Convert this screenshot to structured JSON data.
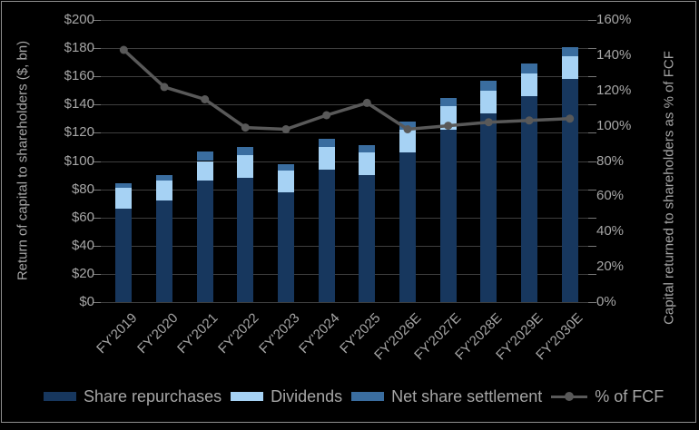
{
  "chart_data": {
    "type": "bar",
    "subtype": "stacked-bar-with-line",
    "categories": [
      "FY'2019",
      "FY'2020",
      "FY'2021",
      "FY'2022",
      "FY'2023",
      "FY'2024",
      "FY'2025",
      "FY'2026E",
      "FY'2027E",
      "FY'2028E",
      "FY'2029E",
      "FY'2030E"
    ],
    "bar_series": [
      {
        "name": "Share repurchases",
        "color": "#17375e",
        "values": [
          66,
          72,
          86,
          88,
          78,
          94,
          90,
          106,
          122,
          134,
          146,
          158
        ]
      },
      {
        "name": "Dividends",
        "color": "#a6d2f4",
        "values": [
          15,
          14,
          14,
          16,
          15,
          16,
          16,
          16,
          17,
          16,
          16,
          16
        ]
      },
      {
        "name": "Net share settlement",
        "color": "#3a6d9f",
        "values": [
          3,
          4,
          7,
          6,
          5,
          6,
          5,
          6,
          6,
          7,
          7,
          7
        ]
      }
    ],
    "line_series": {
      "name": "% of FCF",
      "color": "#595959",
      "axis": "right",
      "values": [
        143,
        122,
        115,
        99,
        98,
        106,
        113,
        98,
        100,
        102,
        103,
        104
      ]
    },
    "left_axis": {
      "title": "Return of capital to shareholders ($, bn)",
      "min": 0,
      "max": 200,
      "step": 20,
      "tick_labels": [
        "$0",
        "$20",
        "$40",
        "$60",
        "$80",
        "$100",
        "$120",
        "$140",
        "$160",
        "$180",
        "$200"
      ]
    },
    "right_axis": {
      "title": "Capital returned to shareholders as % of FCF",
      "min": 0,
      "max": 160,
      "step": 20,
      "tick_labels": [
        "0%",
        "20%",
        "40%",
        "60%",
        "80%",
        "100%",
        "120%",
        "140%",
        "160%"
      ]
    },
    "grid": true,
    "legend_position": "bottom",
    "colors": {
      "background": "#000000",
      "gridline": "#3f3f3f",
      "text": "#a6a6a6",
      "frame": "#8f8f8f"
    }
  }
}
